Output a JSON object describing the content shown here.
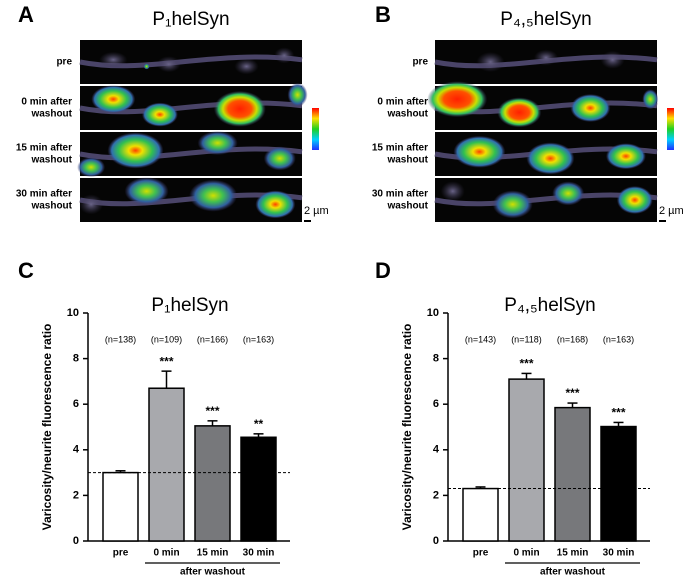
{
  "panels": [
    {
      "letter": "A",
      "title": "P₁helSyn",
      "scale": "2 µm",
      "rows": [
        [
          "pre"
        ],
        [
          "0 min after",
          "washout"
        ],
        [
          "15 min after",
          "washout"
        ],
        [
          "30 min after",
          "washout"
        ]
      ]
    },
    {
      "letter": "B",
      "title": "P₄,₅helSyn",
      "scale": "2 µm",
      "rows": [
        [
          "pre"
        ],
        [
          "0 min after",
          "washout"
        ],
        [
          "15 min after",
          "washout"
        ],
        [
          "30 min after",
          "washout"
        ]
      ]
    }
  ],
  "chart_data": [
    {
      "type": "bar",
      "letter": "C",
      "title": "P₁helSyn",
      "ylabel": "Varicosity/neurite fluorescence ratio",
      "categories": [
        "pre",
        "0 min",
        "15 min",
        "30 min"
      ],
      "group_label": "after washout",
      "values": [
        3.0,
        6.7,
        5.05,
        4.55
      ],
      "errors": [
        0.08,
        0.75,
        0.22,
        0.15
      ],
      "colors": [
        "#ffffff",
        "#a8a9ad",
        "#77787b",
        "#000000"
      ],
      "n_labels": [
        "(n=138)",
        "(n=109)",
        "(n=166)",
        "(n=163)"
      ],
      "significance": [
        null,
        "***",
        "***",
        "**"
      ],
      "reference_line": 3.0,
      "ylim": [
        0,
        10
      ],
      "yticks": [
        0,
        2,
        4,
        6,
        8,
        10
      ]
    },
    {
      "type": "bar",
      "letter": "D",
      "title": "P₄,₅helSyn",
      "ylabel": "Varicosity/neurite fluorescence ratio",
      "categories": [
        "pre",
        "0 min",
        "15 min",
        "30 min"
      ],
      "group_label": "after washout",
      "values": [
        2.3,
        7.1,
        5.85,
        5.02
      ],
      "errors": [
        0.07,
        0.25,
        0.2,
        0.18
      ],
      "colors": [
        "#ffffff",
        "#a8a9ad",
        "#77787b",
        "#000000"
      ],
      "n_labels": [
        "(n=143)",
        "(n=118)",
        "(n=168)",
        "(n=163)"
      ],
      "significance": [
        null,
        "***",
        "***",
        "***"
      ],
      "reference_line": 2.3,
      "ylim": [
        0,
        10
      ],
      "yticks": [
        0,
        2,
        4,
        6,
        8,
        10
      ]
    }
  ]
}
